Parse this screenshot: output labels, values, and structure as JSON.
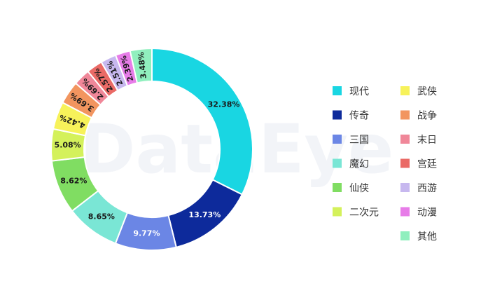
{
  "watermark": "DataEye",
  "colors": {
    "现代": "#19d6e2",
    "传奇": "#0d2a9b",
    "三国": "#6b86e5",
    "魔幻": "#7ae6d5",
    "仙侠": "#80dd62",
    "二次元": "#d4f15b",
    "武侠": "#f7f25a",
    "战争": "#f2955f",
    "末日": "#f08799",
    "宫廷": "#ea6a66",
    "西游": "#c7b8ef",
    "动漫": "#e77ce8",
    "其他": "#90efbe"
  },
  "chart_data": {
    "type": "pie",
    "donut": true,
    "title": "",
    "legend_position": "right",
    "unit": "%",
    "slices": [
      {
        "label": "现代",
        "value": 32.38,
        "text": "32.38%"
      },
      {
        "label": "传奇",
        "value": 13.73,
        "text": "13.73%"
      },
      {
        "label": "三国",
        "value": 9.77,
        "text": "9.77%"
      },
      {
        "label": "魔幻",
        "value": 8.65,
        "text": "8.65%"
      },
      {
        "label": "仙侠",
        "value": 8.62,
        "text": "8.62%"
      },
      {
        "label": "二次元",
        "value": 5.08,
        "text": "5.08%"
      },
      {
        "label": "武侠",
        "value": 4.42,
        "text": "4.42%"
      },
      {
        "label": "战争",
        "value": 3.69,
        "text": "3.69%"
      },
      {
        "label": "末日",
        "value": 2.69,
        "text": "2.69%"
      },
      {
        "label": "宫廷",
        "value": 2.57,
        "text": "2.57%"
      },
      {
        "label": "西游",
        "value": 2.51,
        "text": "2.51%"
      },
      {
        "label": "动漫",
        "value": 2.39,
        "text": "2.39%"
      },
      {
        "label": "其他",
        "value": 3.48,
        "text": "3.48%"
      }
    ],
    "legend_columns": [
      [
        "现代",
        "传奇",
        "三国",
        "魔幻",
        "仙侠",
        "二次元"
      ],
      [
        "武侠",
        "战争",
        "末日",
        "宫廷",
        "西游",
        "动漫",
        "其他"
      ]
    ]
  }
}
